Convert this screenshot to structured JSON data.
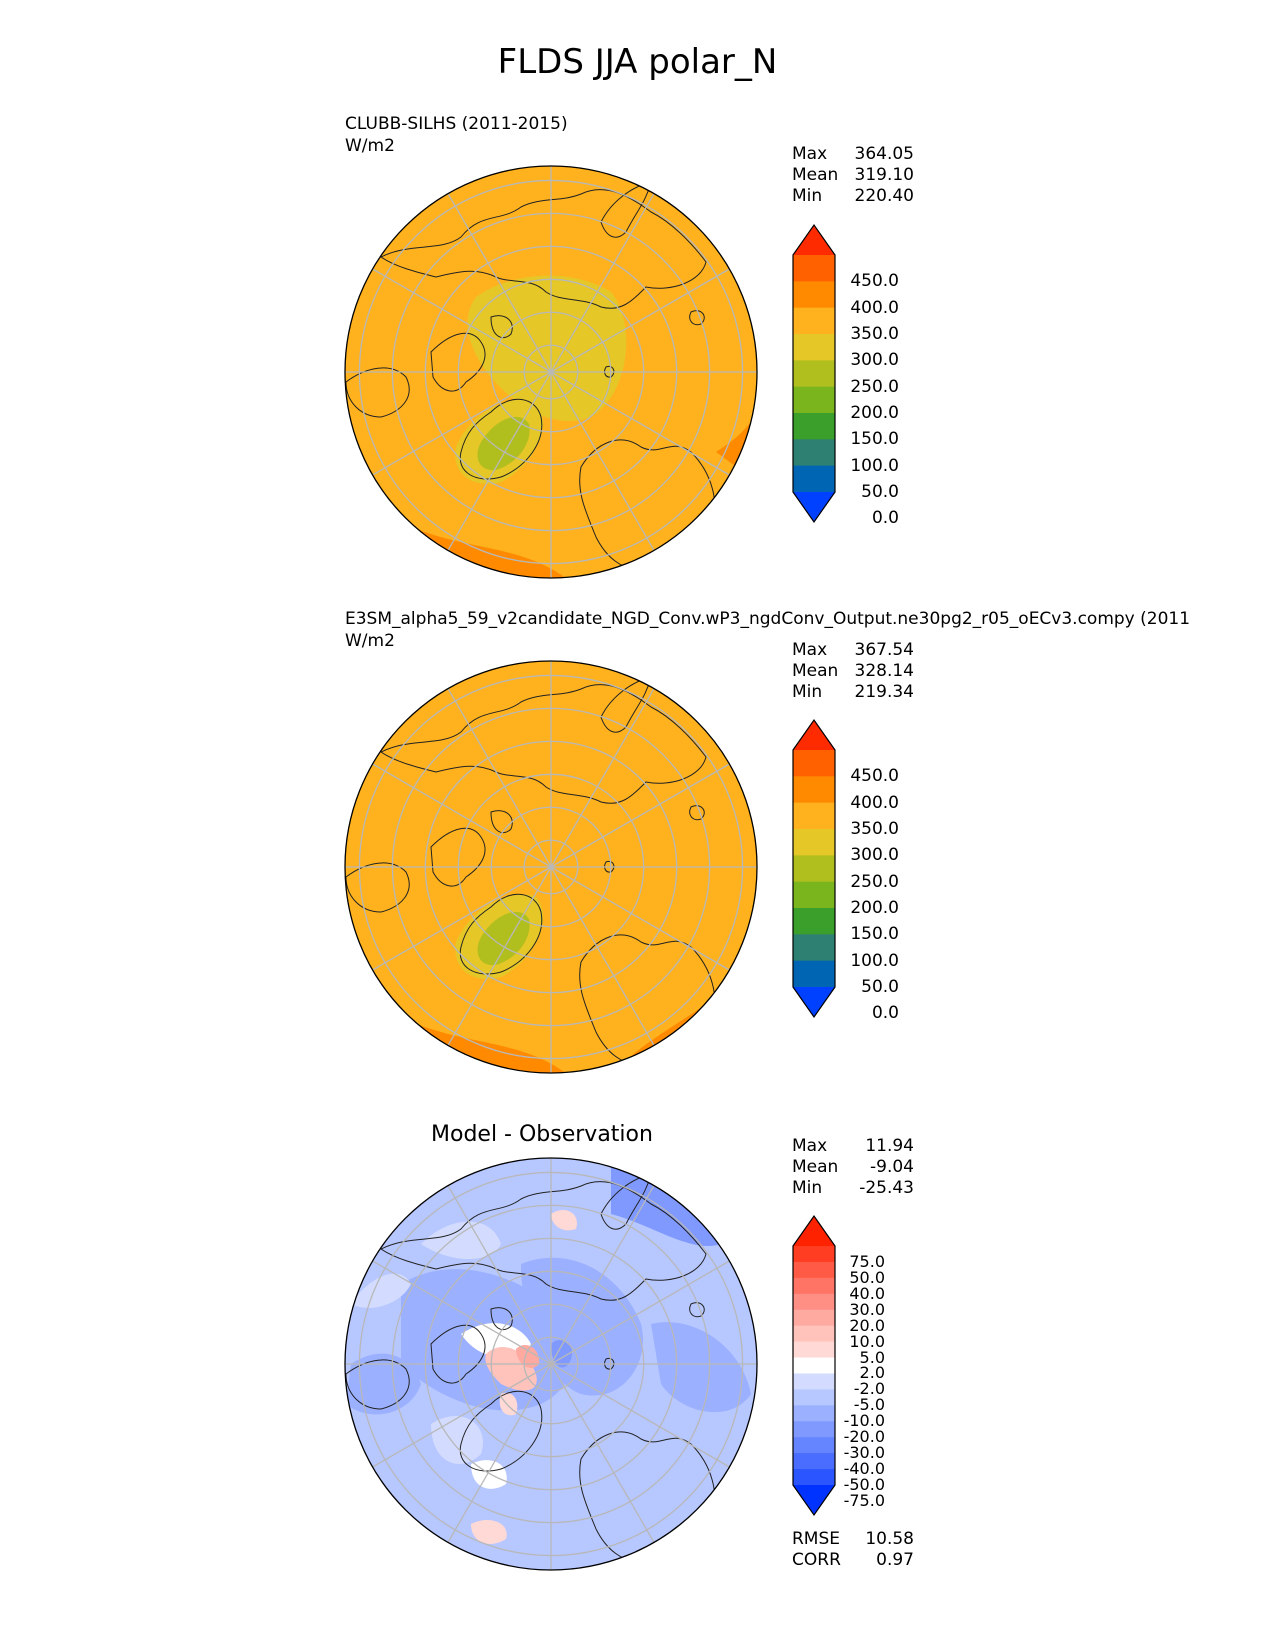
{
  "figure_title": "FLDS JJA polar_N",
  "panels": [
    {
      "title": "CLUBB-SILHS (2011-2015)",
      "units": "W/m2",
      "stats": {
        "Max": "364.05",
        "Mean": "319.10",
        "Min": "220.40"
      },
      "colorbar_ticks": [
        "450.0",
        "400.0",
        "350.0",
        "300.0",
        "250.0",
        "200.0",
        "150.0",
        "100.0",
        "50.0",
        "0.0"
      ]
    },
    {
      "title": "E3SM_alpha5_59_v2candidate_NGD_Conv.wP3_ngdConv_Output.ne30pg2_r05_oECv3.compy (2011",
      "units": "W/m2",
      "stats": {
        "Max": "367.54",
        "Mean": "328.14",
        "Min": "219.34"
      },
      "colorbar_ticks": [
        "450.0",
        "400.0",
        "350.0",
        "300.0",
        "250.0",
        "200.0",
        "150.0",
        "100.0",
        "50.0",
        "0.0"
      ]
    },
    {
      "title": "Model - Observation",
      "stats": {
        "Max": "11.94",
        "Mean": "-9.04",
        "Min": "-25.43"
      },
      "colorbar_ticks": [
        "75.0",
        "50.0",
        "40.0",
        "30.0",
        "20.0",
        "10.0",
        "5.0",
        "2.0",
        "-2.0",
        "-5.0",
        "-10.0",
        "-20.0",
        "-30.0",
        "-40.0",
        "-50.0",
        "-75.0"
      ],
      "metrics": {
        "RMSE": "10.58",
        "CORR": "0.97"
      }
    }
  ],
  "chart_data": [
    {
      "type": "heatmap",
      "projection": "north-polar-stereographic",
      "title": "CLUBB-SILHS (2011-2015)",
      "units": "W/m2",
      "levels": [
        0,
        50,
        100,
        150,
        200,
        250,
        300,
        350,
        400,
        450
      ],
      "colors": [
        "#0040ff",
        "#0066b3",
        "#2e8073",
        "#3aa02b",
        "#7ab51e",
        "#b0bf1e",
        "#e5c727",
        "#ffb21e",
        "#ff8a00",
        "#ff6100",
        "#ff2b00"
      ],
      "max": 364.05,
      "mean": 319.1,
      "min": 220.4
    },
    {
      "type": "heatmap",
      "projection": "north-polar-stereographic",
      "title": "E3SM_alpha5_59_v2candidate_NGD_Conv.wP3_ngdConv_Output.ne30pg2_r05_oECv3.compy (2011",
      "units": "W/m2",
      "levels": [
        0,
        50,
        100,
        150,
        200,
        250,
        300,
        350,
        400,
        450
      ],
      "max": 367.54,
      "mean": 328.14,
      "min": 219.34
    },
    {
      "type": "heatmap",
      "projection": "north-polar-stereographic",
      "title": "Model - Observation",
      "levels": [
        -75,
        -50,
        -40,
        -30,
        -20,
        -10,
        -5,
        -2,
        2,
        5,
        10,
        20,
        30,
        40,
        50,
        75
      ],
      "colors": [
        "#0033ff",
        "#2b55ff",
        "#4a6cff",
        "#6584ff",
        "#7f99ff",
        "#9bb0ff",
        "#b7c7ff",
        "#d3dcff",
        "#ffffff",
        "#ffd9d5",
        "#ffc3bb",
        "#ffaaa0",
        "#ff8f84",
        "#ff7464",
        "#ff5a45",
        "#ff3d22",
        "#ff2200"
      ],
      "max": 11.94,
      "mean": -9.04,
      "min": -25.43,
      "rmse": 10.58,
      "corr": 0.97
    }
  ]
}
